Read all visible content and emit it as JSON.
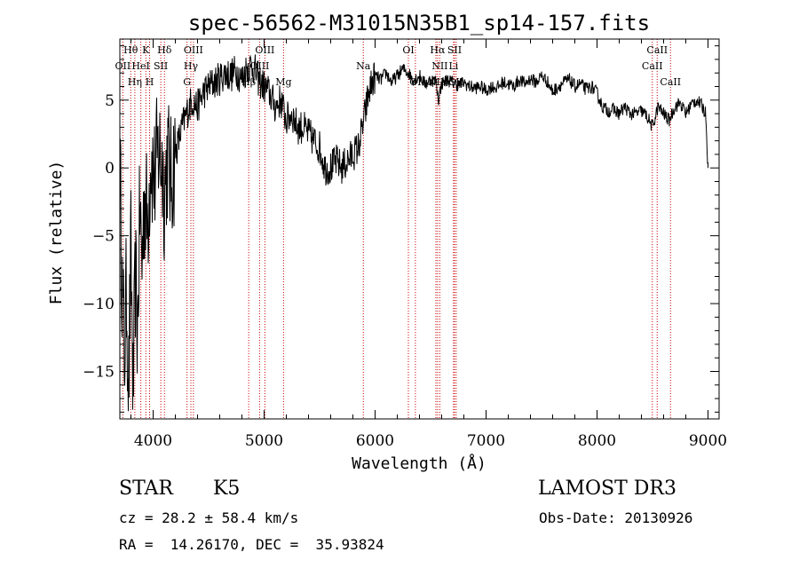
{
  "chart_data": {
    "type": "line",
    "title": "spec-56562-M31015N35B1_sp14-157.fits",
    "xlabel": "Wavelength (Å)",
    "ylabel": "Flux (relative)",
    "xlim": [
      3700,
      9100
    ],
    "ylim": [
      -18.5,
      9.5
    ],
    "xticks": [
      4000,
      5000,
      6000,
      7000,
      8000,
      9000
    ],
    "yticks": [
      -15,
      -10,
      -5,
      0,
      5
    ],
    "spectrum_anchors": [
      [
        3700,
        0.5
      ],
      [
        3720,
        -8
      ],
      [
        3740,
        -14
      ],
      [
        3760,
        -9
      ],
      [
        3780,
        -16
      ],
      [
        3800,
        -6
      ],
      [
        3820,
        -17
      ],
      [
        3840,
        -8
      ],
      [
        3860,
        -12
      ],
      [
        3880,
        -3
      ],
      [
        3900,
        -7
      ],
      [
        3920,
        -2
      ],
      [
        3950,
        -4
      ],
      [
        3980,
        1
      ],
      [
        4010,
        -1
      ],
      [
        4050,
        1.5
      ],
      [
        4080,
        0.5
      ],
      [
        4100,
        -2
      ],
      [
        4130,
        1
      ],
      [
        4160,
        -1
      ],
      [
        4200,
        1
      ],
      [
        4260,
        3
      ],
      [
        4300,
        4
      ],
      [
        4350,
        5
      ],
      [
        4400,
        4.5
      ],
      [
        4450,
        5.5
      ],
      [
        4500,
        6
      ],
      [
        4550,
        6.3
      ],
      [
        4600,
        6.6
      ],
      [
        4650,
        7
      ],
      [
        4700,
        6.8
      ],
      [
        4750,
        7.2
      ],
      [
        4800,
        6.5
      ],
      [
        4850,
        7.5
      ],
      [
        4900,
        7.5
      ],
      [
        4950,
        6.5
      ],
      [
        5000,
        6
      ],
      [
        5050,
        5.5
      ],
      [
        5100,
        4.5
      ],
      [
        5150,
        5
      ],
      [
        5200,
        3.5
      ],
      [
        5250,
        4
      ],
      [
        5300,
        3
      ],
      [
        5350,
        3
      ],
      [
        5400,
        2.5
      ],
      [
        5450,
        2
      ],
      [
        5500,
        1.5
      ],
      [
        5550,
        0
      ],
      [
        5600,
        0
      ],
      [
        5650,
        0.5
      ],
      [
        5700,
        0
      ],
      [
        5750,
        0.5
      ],
      [
        5800,
        1
      ],
      [
        5850,
        1.5
      ],
      [
        5900,
        3.5
      ],
      [
        5930,
        5
      ],
      [
        5960,
        6
      ],
      [
        6000,
        6.8
      ],
      [
        6050,
        6.5
      ],
      [
        6100,
        7
      ],
      [
        6150,
        6.3
      ],
      [
        6200,
        6.8
      ],
      [
        6250,
        7.3
      ],
      [
        6300,
        7
      ],
      [
        6350,
        6.5
      ],
      [
        6400,
        6.8
      ],
      [
        6450,
        6.2
      ],
      [
        6500,
        6.5
      ],
      [
        6550,
        6.4
      ],
      [
        6570,
        5
      ],
      [
        6600,
        6.2
      ],
      [
        6650,
        6.5
      ],
      [
        6700,
        6.3
      ],
      [
        6750,
        6.1
      ],
      [
        6800,
        6.3
      ],
      [
        6850,
        6
      ],
      [
        6900,
        5.9
      ],
      [
        6950,
        6
      ],
      [
        7000,
        5.7
      ],
      [
        7050,
        6
      ],
      [
        7100,
        5.9
      ],
      [
        7150,
        6.3
      ],
      [
        7200,
        6.2
      ],
      [
        7250,
        6
      ],
      [
        7300,
        6.5
      ],
      [
        7350,
        6.2
      ],
      [
        7400,
        6.6
      ],
      [
        7450,
        6.3
      ],
      [
        7500,
        6.8
      ],
      [
        7550,
        6.4
      ],
      [
        7600,
        5.6
      ],
      [
        7650,
        6
      ],
      [
        7700,
        6.3
      ],
      [
        7750,
        6.5
      ],
      [
        7800,
        6
      ],
      [
        7850,
        6.2
      ],
      [
        7900,
        5.8
      ],
      [
        7950,
        6
      ],
      [
        8000,
        5.5
      ],
      [
        8050,
        4.5
      ],
      [
        8100,
        4.2
      ],
      [
        8150,
        4.3
      ],
      [
        8200,
        4
      ],
      [
        8250,
        4.5
      ],
      [
        8300,
        4
      ],
      [
        8350,
        4
      ],
      [
        8400,
        4.2
      ],
      [
        8450,
        3.8
      ],
      [
        8500,
        3
      ],
      [
        8550,
        4.5
      ],
      [
        8600,
        4
      ],
      [
        8650,
        3.5
      ],
      [
        8700,
        4.5
      ],
      [
        8750,
        4.8
      ],
      [
        8800,
        4
      ],
      [
        8850,
        4.7
      ],
      [
        8900,
        5
      ],
      [
        8950,
        4.5
      ],
      [
        8980,
        4
      ],
      [
        9000,
        0
      ]
    ],
    "emission_lines": [
      {
        "label": "OII",
        "wavelength": 3727,
        "row": 1
      },
      {
        "label": "Hθ",
        "wavelength": 3798,
        "row": 0
      },
      {
        "label": "Hη",
        "wavelength": 3835,
        "row": 2
      },
      {
        "label": "HeI",
        "wavelength": 3889,
        "row": 1
      },
      {
        "label": "K",
        "wavelength": 3934,
        "row": 0
      },
      {
        "label": "H",
        "wavelength": 3968,
        "row": 2
      },
      {
        "label": "SII",
        "wavelength": 4069,
        "row": 1
      },
      {
        "label": "Hδ",
        "wavelength": 4102,
        "row": 0
      },
      {
        "label": "G",
        "wavelength": 4305,
        "row": 2
      },
      {
        "label": "Hγ",
        "wavelength": 4340,
        "row": 1
      },
      {
        "label": "OIII",
        "wavelength": 4363,
        "row": 0
      },
      {
        "label": "Hβ",
        "wavelength": 4861,
        "row": 2
      },
      {
        "label": "OIII",
        "wavelength": 4959,
        "row": 1
      },
      {
        "label": "OIII",
        "wavelength": 5007,
        "row": 0
      },
      {
        "label": "Mg",
        "wavelength": 5175,
        "row": 2
      },
      {
        "label": "Na",
        "wavelength": 5894,
        "row": 1
      },
      {
        "label": "OI",
        "wavelength": 6300,
        "row": 0
      },
      {
        "label": "OI",
        "wavelength": 6363,
        "row": 2
      },
      {
        "label": "NII",
        "wavelength": 6548,
        "row": 2
      },
      {
        "label": "Hα",
        "wavelength": 6563,
        "row": 0
      },
      {
        "label": "NII",
        "wavelength": 6583,
        "row": 1
      },
      {
        "label": "Li",
        "wavelength": 6707,
        "row": 1
      },
      {
        "label": "SII",
        "wavelength": 6716,
        "row": 0
      },
      {
        "label": "SII",
        "wavelength": 6731,
        "row": 2
      },
      {
        "label": "CaII",
        "wavelength": 8498,
        "row": 1
      },
      {
        "label": "CaII",
        "wavelength": 8542,
        "row": 0
      },
      {
        "label": "CaII",
        "wavelength": 8662,
        "row": 2
      }
    ],
    "colors": {
      "line": "#000000",
      "marker": "#cc0000",
      "axis": "#000000"
    }
  },
  "info": {
    "class": "STAR",
    "subclass": "K5",
    "survey": "LAMOST DR3",
    "cz": "cz = 28.2 ± 58.4 km/s",
    "obs_date": "Obs-Date: 20130926",
    "coords": "RA =  14.26170, DEC =  35.93824"
  }
}
